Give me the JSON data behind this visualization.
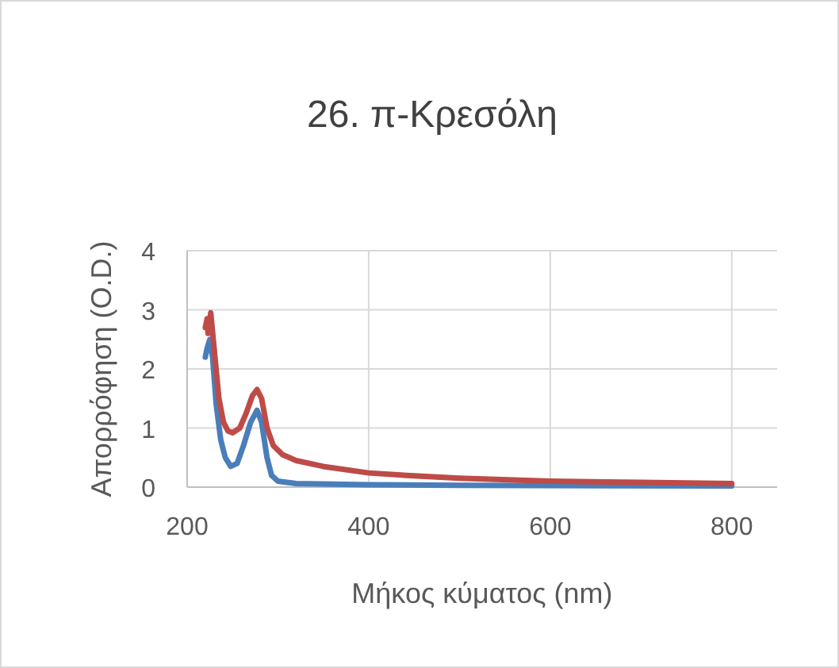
{
  "chart_data": {
    "type": "line",
    "title": "26. π-Κρεσόλη",
    "xlabel": "Μήκος κύματος (nm)",
    "ylabel": "Απορρόφηση (O.D.)",
    "xlim": [
      200,
      850
    ],
    "xticks": [
      200,
      400,
      600,
      800
    ],
    "ylim": [
      0,
      4
    ],
    "yticks": [
      0,
      1,
      2,
      3,
      4
    ],
    "grid": true,
    "line_style": "solid",
    "series": [
      {
        "color": "#4a7ebb",
        "x": [
          220,
          222,
          225,
          228,
          232,
          237,
          242,
          248,
          255,
          262,
          270,
          277,
          282,
          288,
          293,
          300,
          320,
          400,
          500,
          800
        ],
        "values": [
          2.2,
          2.35,
          2.5,
          2.2,
          1.4,
          0.8,
          0.5,
          0.35,
          0.4,
          0.7,
          1.1,
          1.3,
          1.1,
          0.5,
          0.2,
          0.1,
          0.06,
          0.04,
          0.03,
          0.02
        ]
      },
      {
        "color": "#be4b48",
        "x": [
          220,
          222,
          223,
          226,
          230,
          235,
          240,
          245,
          250,
          258,
          265,
          272,
          277,
          282,
          288,
          295,
          305,
          320,
          350,
          400,
          450,
          500,
          600,
          700,
          800
        ],
        "values": [
          2.7,
          2.85,
          2.6,
          2.95,
          2.3,
          1.5,
          1.1,
          0.95,
          0.92,
          1.0,
          1.25,
          1.55,
          1.65,
          1.5,
          1.0,
          0.7,
          0.55,
          0.45,
          0.35,
          0.24,
          0.19,
          0.15,
          0.1,
          0.08,
          0.06
        ]
      }
    ]
  }
}
